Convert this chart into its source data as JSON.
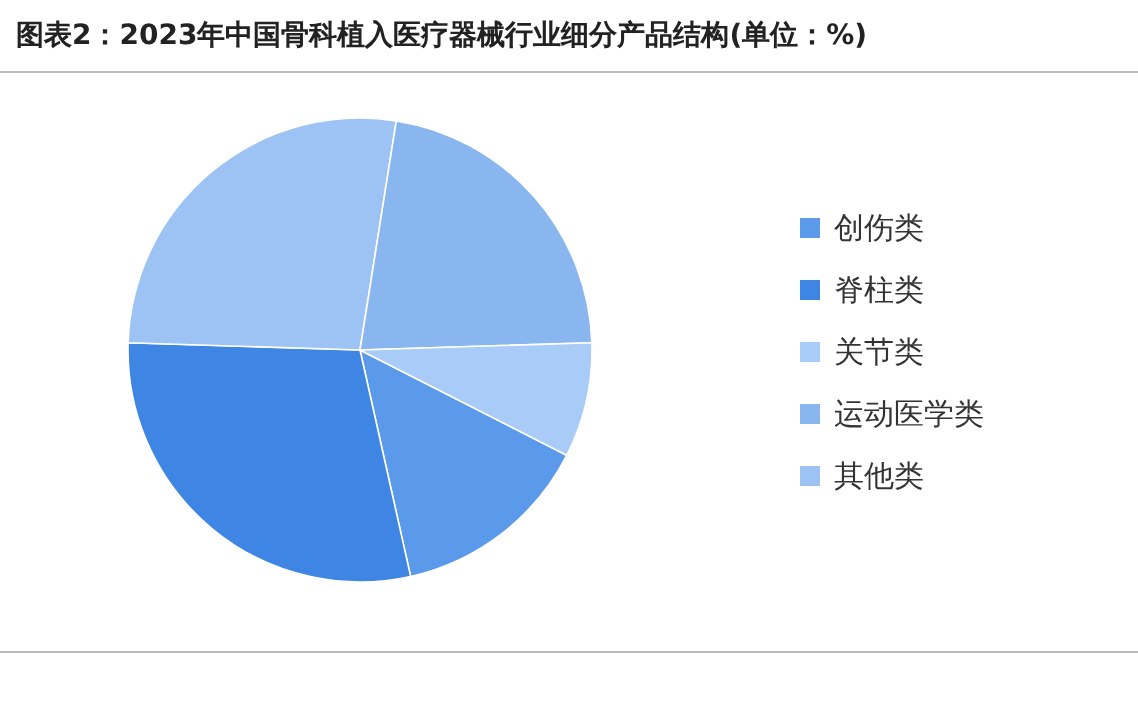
{
  "chart_data": {
    "type": "pie",
    "title": "图表2：2023年中国骨科植入医疗器械行业细分产品结构(单位：%)",
    "categories": [
      "创伤类",
      "脊柱类",
      "关节类",
      "运动医学类",
      "其他类"
    ],
    "values": [
      14,
      29,
      8,
      22,
      27
    ],
    "colors": [
      "#5b9aea",
      "#3f86e4",
      "#a9cbf7",
      "#8ab6f0",
      "#9dc3f4"
    ],
    "legend": "right"
  }
}
